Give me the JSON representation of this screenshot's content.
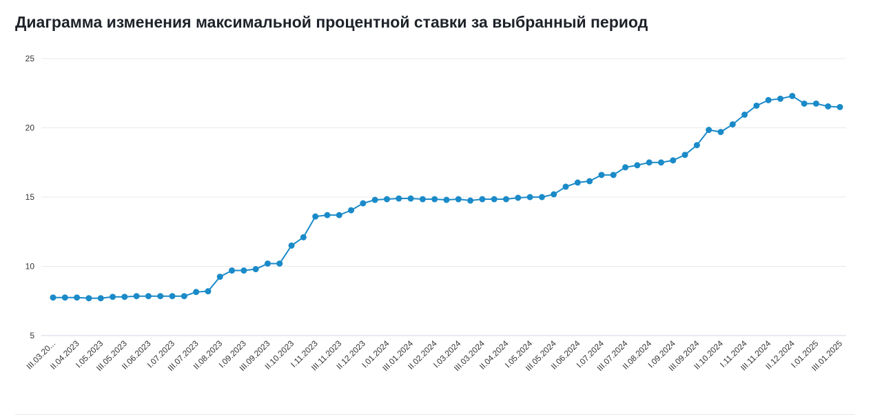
{
  "chart_data": {
    "type": "line",
    "title": "Диаграмма изменения максимальной процентной ставки за выбранный период",
    "categories": [
      "III.03.20...",
      null,
      "II.04.2023",
      null,
      "I.05.2023",
      null,
      "III.05.2023",
      null,
      "II.06.2023",
      null,
      "I.07.2023",
      null,
      "III.07.2023",
      null,
      "II.08.2023",
      null,
      "I.09.2023",
      null,
      "III.09.2023",
      null,
      "II.10.2023",
      null,
      "I.11.2023",
      null,
      "III.11.2023",
      null,
      "II.12.2023",
      null,
      "I.01.2024",
      null,
      "III.01.2024",
      null,
      "II.02.2024",
      null,
      "I.03.2024",
      null,
      "III.03.2024",
      null,
      "II.04.2024",
      null,
      "I.05.2024",
      null,
      "III.05.2024",
      null,
      "II.06.2024",
      null,
      "I.07.2024",
      null,
      "III.07.2024",
      null,
      "II.08.2024",
      null,
      "I.09.2024",
      null,
      "III.09.2024",
      null,
      "II.10.2024",
      null,
      "I.11.2024",
      null,
      "III.11.2024",
      null,
      "II.12.2024",
      null,
      "I.01.2025",
      null,
      "III.01.2025"
    ],
    "values": [
      7.75,
      7.75,
      7.75,
      7.7,
      7.7,
      7.8,
      7.8,
      7.85,
      7.85,
      7.85,
      7.85,
      7.85,
      8.15,
      8.2,
      9.25,
      9.7,
      9.7,
      9.8,
      10.2,
      10.2,
      11.5,
      12.1,
      13.6,
      13.7,
      13.7,
      14.05,
      14.55,
      14.8,
      14.85,
      14.9,
      14.9,
      14.85,
      14.85,
      14.8,
      14.85,
      14.75,
      14.85,
      14.85,
      14.85,
      14.95,
      15.0,
      15.0,
      15.2,
      15.75,
      16.05,
      16.15,
      16.6,
      16.6,
      17.15,
      17.3,
      17.5,
      17.5,
      17.65,
      18.05,
      18.75,
      19.85,
      19.7,
      20.25,
      20.95,
      21.6,
      22.0,
      22.1,
      22.3,
      21.75,
      21.75,
      21.55,
      21.5
    ],
    "color": "#1a8ac8",
    "ylim": [
      5,
      25
    ],
    "yticks": [
      5,
      10,
      15,
      20,
      25
    ],
    "grid": true
  }
}
